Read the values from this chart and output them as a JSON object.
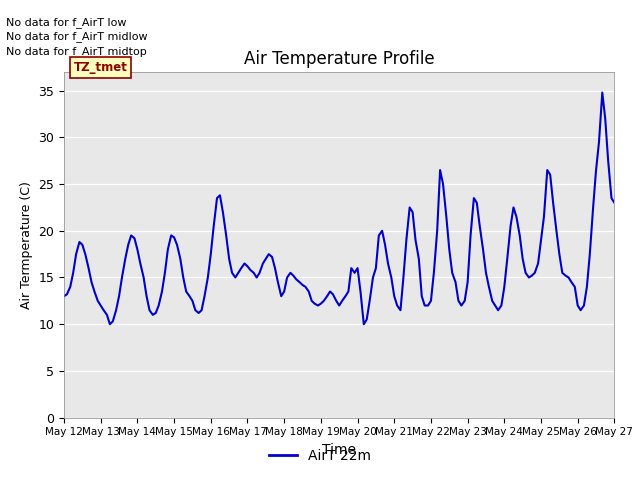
{
  "title": "Air Temperature Profile",
  "xlabel": "Time",
  "ylabel": "Air Termperature (C)",
  "ylim": [
    0,
    37
  ],
  "yticks": [
    0,
    5,
    10,
    15,
    20,
    25,
    30,
    35
  ],
  "line_color": "#0000CC",
  "line_width": 1.5,
  "background_color": "#E8E8E8",
  "plot_bg_color": "#E8E8E8",
  "legend_label": "AirT 22m",
  "no_data_texts": [
    "No data for f_AirT low",
    "No data for f_AirT midlow",
    "No data for f_AirT midtop"
  ],
  "tz_tmet_label": "TZ_tmet",
  "x_tick_labels": [
    "May 12",
    "May 13",
    "May 14",
    "May 15",
    "May 16",
    "May 17",
    "May 18",
    "May 19",
    "May 20",
    "May 21",
    "May 22",
    "May 23",
    "May 24",
    "May 25",
    "May 26",
    "May 27"
  ],
  "temp_x": [
    0.0,
    0.08,
    0.17,
    0.25,
    0.33,
    0.42,
    0.5,
    0.58,
    0.67,
    0.75,
    0.83,
    0.92,
    1.0,
    1.08,
    1.17,
    1.25,
    1.33,
    1.42,
    1.5,
    1.58,
    1.67,
    1.75,
    1.83,
    1.92,
    2.0,
    2.08,
    2.17,
    2.25,
    2.33,
    2.42,
    2.5,
    2.58,
    2.67,
    2.75,
    2.83,
    2.92,
    3.0,
    3.08,
    3.17,
    3.25,
    3.33,
    3.42,
    3.5,
    3.58,
    3.67,
    3.75,
    3.83,
    3.92,
    4.0,
    4.08,
    4.17,
    4.25,
    4.33,
    4.42,
    4.5,
    4.58,
    4.67,
    4.75,
    4.83,
    4.92,
    5.0,
    5.08,
    5.17,
    5.25,
    5.33,
    5.42,
    5.5,
    5.58,
    5.67,
    5.75,
    5.83,
    5.92,
    6.0,
    6.08,
    6.17,
    6.25,
    6.33,
    6.42,
    6.5,
    6.58,
    6.67,
    6.75,
    6.83,
    6.92,
    7.0,
    7.08,
    7.17,
    7.25,
    7.33,
    7.42,
    7.5,
    7.58,
    7.67,
    7.75,
    7.83,
    7.92,
    8.0,
    8.08,
    8.17,
    8.25,
    8.33,
    8.42,
    8.5,
    8.58,
    8.67,
    8.75,
    8.83,
    8.92,
    9.0,
    9.08,
    9.17,
    9.25,
    9.33,
    9.42,
    9.5,
    9.58,
    9.67,
    9.75,
    9.83,
    9.92,
    10.0,
    10.08,
    10.17,
    10.25,
    10.33,
    10.42,
    10.5,
    10.58,
    10.67,
    10.75,
    10.83,
    10.92,
    11.0,
    11.08,
    11.17,
    11.25,
    11.33,
    11.42,
    11.5,
    11.58,
    11.67,
    11.75,
    11.83,
    11.92,
    12.0,
    12.08,
    12.17,
    12.25,
    12.33,
    12.42,
    12.5,
    12.58,
    12.67,
    12.75,
    12.83,
    12.92,
    13.0,
    13.08,
    13.17,
    13.25,
    13.33,
    13.42,
    13.5,
    13.58,
    13.67,
    13.75,
    13.83,
    13.92,
    14.0,
    14.08,
    14.17,
    14.25,
    14.33,
    14.42,
    14.5,
    14.58,
    14.67,
    14.75,
    14.83,
    14.92,
    15.0
  ],
  "temp_y": [
    13.0,
    13.2,
    14.0,
    15.5,
    17.5,
    18.8,
    18.5,
    17.5,
    16.0,
    14.5,
    13.5,
    12.5,
    12.0,
    11.5,
    11.0,
    10.0,
    10.3,
    11.5,
    13.0,
    15.0,
    17.0,
    18.5,
    19.5,
    19.2,
    18.0,
    16.5,
    15.0,
    13.0,
    11.5,
    11.0,
    11.2,
    12.0,
    13.5,
    15.5,
    18.0,
    19.5,
    19.3,
    18.5,
    17.0,
    15.0,
    13.5,
    13.0,
    12.5,
    11.5,
    11.2,
    11.5,
    13.0,
    15.0,
    17.5,
    20.5,
    23.5,
    23.8,
    22.0,
    19.5,
    17.0,
    15.5,
    15.0,
    15.5,
    16.0,
    16.5,
    16.2,
    15.8,
    15.5,
    15.0,
    15.5,
    16.5,
    17.0,
    17.5,
    17.2,
    16.0,
    14.5,
    13.0,
    13.5,
    15.0,
    15.5,
    15.2,
    14.8,
    14.5,
    14.2,
    14.0,
    13.5,
    12.5,
    12.2,
    12.0,
    12.2,
    12.5,
    13.0,
    13.5,
    13.2,
    12.5,
    12.0,
    12.5,
    13.0,
    13.5,
    16.0,
    15.5,
    16.0,
    13.5,
    10.0,
    10.5,
    12.5,
    15.0,
    16.0,
    19.5,
    20.0,
    18.5,
    16.5,
    15.0,
    13.0,
    12.0,
    11.5,
    15.0,
    19.0,
    22.5,
    22.0,
    19.0,
    17.0,
    13.0,
    12.0,
    12.0,
    12.5,
    15.5,
    20.0,
    26.5,
    25.0,
    21.5,
    18.0,
    15.5,
    14.5,
    12.5,
    12.0,
    12.5,
    14.5,
    19.5,
    23.5,
    23.0,
    20.5,
    18.0,
    15.5,
    14.0,
    12.5,
    12.0,
    11.5,
    12.0,
    14.0,
    17.0,
    20.5,
    22.5,
    21.5,
    19.5,
    17.0,
    15.5,
    15.0,
    15.2,
    15.5,
    16.5,
    19.0,
    21.5,
    26.5,
    26.0,
    23.0,
    20.0,
    17.5,
    15.5,
    15.2,
    15.0,
    14.5,
    14.0,
    12.0,
    11.5,
    12.0,
    14.0,
    17.5,
    22.5,
    26.5,
    29.5,
    34.8,
    32.0,
    27.5,
    23.5,
    23.0
  ]
}
